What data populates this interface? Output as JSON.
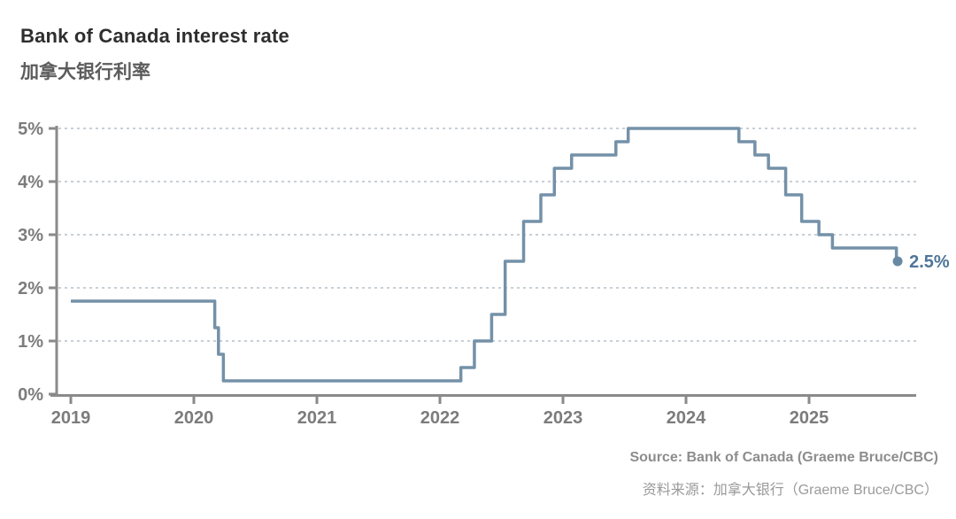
{
  "header": {
    "title": "Bank of Canada interest rate",
    "subtitle_zh": "加拿大银行利率"
  },
  "chart_data": {
    "type": "line",
    "step": true,
    "title": "Bank of Canada interest rate",
    "title_zh": "加拿大银行利率",
    "xlabel": "",
    "ylabel": "",
    "unit": "%",
    "xlim": [
      2018.9,
      2025.88
    ],
    "ylim": [
      0,
      5
    ],
    "grid": "horizontal-dashed",
    "legend": "none",
    "x_ticks": [
      {
        "value": 2019,
        "label": "2019"
      },
      {
        "value": 2020,
        "label": "2020"
      },
      {
        "value": 2021,
        "label": "2021"
      },
      {
        "value": 2022,
        "label": "2022"
      },
      {
        "value": 2023,
        "label": "2023"
      },
      {
        "value": 2024,
        "label": "2024"
      },
      {
        "value": 2025,
        "label": "2025"
      }
    ],
    "y_ticks": [
      {
        "value": 0,
        "label": "0%"
      },
      {
        "value": 1,
        "label": "1%"
      },
      {
        "value": 2,
        "label": "2%"
      },
      {
        "value": 3,
        "label": "3%"
      },
      {
        "value": 4,
        "label": "4%"
      },
      {
        "value": 5,
        "label": "5%"
      }
    ],
    "series": [
      {
        "name": "Bank of Canada interest rate",
        "points": [
          {
            "x": 2019.0,
            "y": 1.75
          },
          {
            "x": 2020.17,
            "y": 1.25
          },
          {
            "x": 2020.2,
            "y": 0.75
          },
          {
            "x": 2020.24,
            "y": 0.25
          },
          {
            "x": 2022.17,
            "y": 0.5
          },
          {
            "x": 2022.28,
            "y": 1.0
          },
          {
            "x": 2022.42,
            "y": 1.5
          },
          {
            "x": 2022.53,
            "y": 2.5
          },
          {
            "x": 2022.68,
            "y": 3.25
          },
          {
            "x": 2022.82,
            "y": 3.75
          },
          {
            "x": 2022.93,
            "y": 4.25
          },
          {
            "x": 2023.07,
            "y": 4.5
          },
          {
            "x": 2023.43,
            "y": 4.75
          },
          {
            "x": 2023.53,
            "y": 5.0
          },
          {
            "x": 2024.43,
            "y": 4.75
          },
          {
            "x": 2024.56,
            "y": 4.5
          },
          {
            "x": 2024.67,
            "y": 4.25
          },
          {
            "x": 2024.81,
            "y": 3.75
          },
          {
            "x": 2024.94,
            "y": 3.25
          },
          {
            "x": 2025.08,
            "y": 3.0
          },
          {
            "x": 2025.19,
            "y": 2.75
          },
          {
            "x": 2025.71,
            "y": 2.5
          }
        ],
        "end": {
          "x": 2025.72,
          "y": 2.5,
          "label": "2.5%"
        }
      }
    ],
    "colors": {
      "line": "#7491a8",
      "dot": "#6889a4",
      "end_label": "#4f7699",
      "grid": "#c8cfd6",
      "axis": "#8a8a8a",
      "tick_label": "#7c7c7c"
    }
  },
  "footer": {
    "source_en": "Source: Bank of Canada (Graeme Bruce/CBC)",
    "source_zh": "资料来源：加拿大银行（Graeme Bruce/CBC）"
  }
}
